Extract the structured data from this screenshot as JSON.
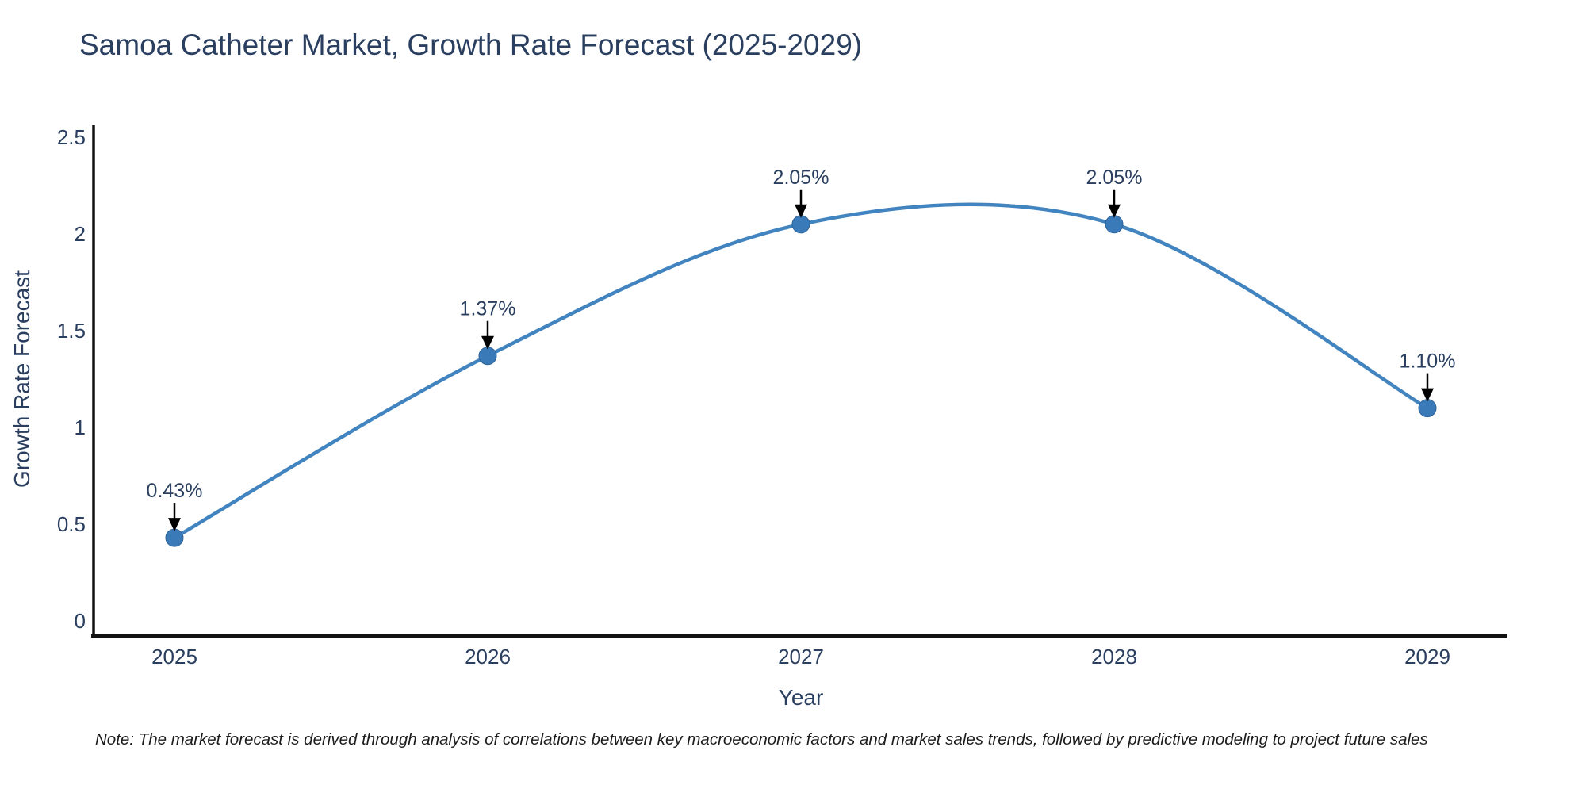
{
  "note": "Note: The market forecast is derived through analysis of correlations between key macroeconomic factors and market sales trends, followed by predictive modeling to project future sales",
  "colors": {
    "background": "#ffffff",
    "title_text": "#2a3f5f",
    "axis_line": "#121212",
    "tick_text": "#2a3f5f",
    "axis_title_text": "#2a3f5f",
    "line": "#4184bf",
    "marker": "#3a7ab8",
    "marker_edge": "#2e6399",
    "annotation_text": "#2a3f5f",
    "arrow": "#000000",
    "note_text": "#1c1c1c"
  },
  "chart_data": {
    "type": "line",
    "title": "Samoa Catheter Market, Growth Rate Forecast (2025-2029)",
    "xlabel": "Year",
    "ylabel": "Growth Rate Forecast",
    "x": [
      2025,
      2026,
      2027,
      2028,
      2029
    ],
    "categories": [
      "2025",
      "2026",
      "2027",
      "2028",
      "2029"
    ],
    "values": [
      0.43,
      1.37,
      2.05,
      2.05,
      1.1
    ],
    "point_labels": [
      "0.43%",
      "1.37%",
      "2.05%",
      "2.05%",
      "1.10%"
    ],
    "ylim": [
      0,
      2.5
    ],
    "yticks": [
      0,
      0.5,
      1,
      1.5,
      2,
      2.5
    ],
    "ytick_labels": [
      "0",
      "0.5",
      "1",
      "1.5",
      "2",
      "2.5"
    ],
    "line_shape": "spline",
    "grid": false,
    "legend": "none",
    "annotation_style": "down-arrow"
  }
}
